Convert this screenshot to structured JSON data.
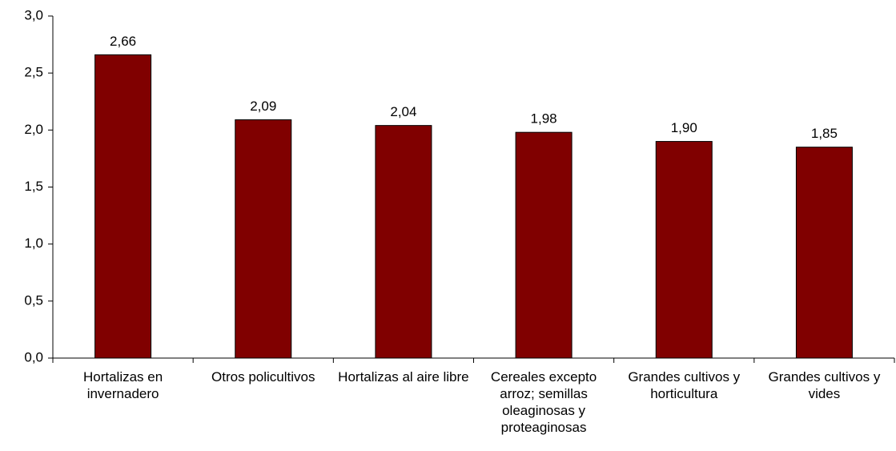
{
  "chart_data": {
    "type": "bar",
    "categories": [
      "Hortalizas en invernadero",
      "Otros policultivos",
      "Hortalizas al aire libre",
      "Cereales excepto arroz; semillas oleaginosas y proteaginosas",
      "Grandes cultivos y horticultura",
      "Grandes cultivos y vides"
    ],
    "values": [
      2.66,
      2.09,
      2.04,
      1.98,
      1.9,
      1.85
    ],
    "value_labels": [
      "2,66",
      "2,09",
      "2,04",
      "1,98",
      "1,90",
      "1,85"
    ],
    "color": "#800000",
    "ylim": [
      0,
      3
    ],
    "yticks": [
      {
        "value": 0,
        "label": "0,0"
      },
      {
        "value": 0.5,
        "label": "0,5"
      },
      {
        "value": 1,
        "label": "1,0"
      },
      {
        "value": 1.5,
        "label": "1,5"
      },
      {
        "value": 2,
        "label": "2,0"
      },
      {
        "value": 2.5,
        "label": "2,5"
      },
      {
        "value": 3,
        "label": "3,0"
      }
    ],
    "grid": false
  }
}
